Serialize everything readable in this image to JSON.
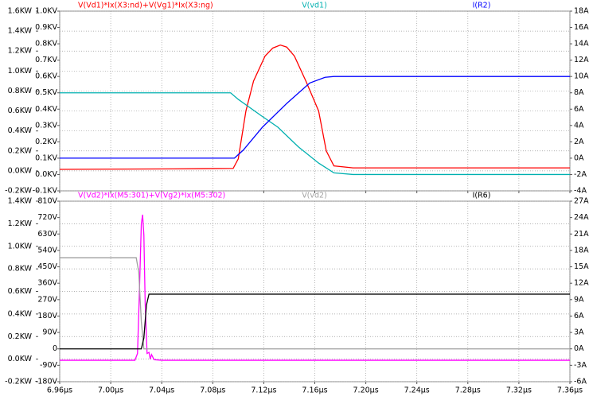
{
  "chart_data": [
    {
      "type": "line",
      "xlim": [
        6.96,
        7.36
      ],
      "ylim": [
        -0.2,
        1.6
      ],
      "yticks": [
        {
          "value": -0.2,
          "label": "-0.2KW"
        },
        {
          "value": 0,
          "label": "0.0KW"
        },
        {
          "value": 0.2,
          "label": "0.2KW"
        },
        {
          "value": 0.4,
          "label": "0.4KW"
        },
        {
          "value": 0.6,
          "label": "0.6KW"
        },
        {
          "value": 0.8,
          "label": "0.8KW"
        },
        {
          "value": 1.0,
          "label": "1.0KW"
        },
        {
          "value": 1.2,
          "label": "1.2KW"
        },
        {
          "value": 1.4,
          "label": "1.4KW"
        },
        {
          "value": 1.6,
          "label": "1.6KW"
        }
      ],
      "y2lim": [
        -0.1,
        1.0
      ],
      "y2ticks": [
        {
          "value": -0.1,
          "label": "-0.1KV"
        },
        {
          "value": 0,
          "label": "0.0KV"
        },
        {
          "value": 0.1,
          "label": "0.1KV"
        },
        {
          "value": 0.2,
          "label": "0.2KV"
        },
        {
          "value": 0.3,
          "label": "0.3KV"
        },
        {
          "value": 0.4,
          "label": "0.4KV"
        },
        {
          "value": 0.5,
          "label": "0.5KV"
        },
        {
          "value": 0.6,
          "label": "0.6KV"
        },
        {
          "value": 0.7,
          "label": "0.7KV"
        },
        {
          "value": 0.8,
          "label": "0.8KV"
        },
        {
          "value": 0.9,
          "label": "0.9KV"
        },
        {
          "value": 1.0,
          "label": "1.0KV"
        }
      ],
      "y3lim": [
        -4,
        18
      ],
      "y3ticks": [
        {
          "value": -4,
          "label": "-4A"
        },
        {
          "value": -2,
          "label": "-2A"
        },
        {
          "value": 0,
          "label": "0A"
        },
        {
          "value": 2,
          "label": "2A"
        },
        {
          "value": 4,
          "label": "4A"
        },
        {
          "value": 6,
          "label": "6A"
        },
        {
          "value": 8,
          "label": "8A"
        },
        {
          "value": 10,
          "label": "10A"
        },
        {
          "value": 12,
          "label": "12A"
        },
        {
          "value": 14,
          "label": "14A"
        },
        {
          "value": 16,
          "label": "16A"
        },
        {
          "value": 18,
          "label": "18A"
        }
      ],
      "grid": true,
      "series": [
        {
          "name": "V(Vd1)*Ix(X3:nd)+V(Vg1)*Ix(X3:ng)",
          "color": "#ff0000",
          "axis": "y",
          "x": [
            6.96,
            7.05,
            7.096,
            7.1,
            7.106,
            7.112,
            7.121,
            7.127,
            7.133,
            7.138,
            7.144,
            7.153,
            7.163,
            7.169,
            7.175,
            7.19,
            7.36
          ],
          "values": [
            0.015,
            0.02,
            0.025,
            0.12,
            0.6,
            0.9,
            1.15,
            1.23,
            1.26,
            1.24,
            1.15,
            0.9,
            0.6,
            0.2,
            0.05,
            0.03,
            0.03
          ]
        },
        {
          "name": "V(vd1)",
          "color": "#00b0b0",
          "axis": "y2",
          "x": [
            6.96,
            7.094,
            7.1,
            7.118,
            7.131,
            7.147,
            7.163,
            7.175,
            7.19,
            7.36
          ],
          "values": [
            0.5,
            0.5,
            0.46,
            0.36,
            0.29,
            0.17,
            0.07,
            0.01,
            0,
            0
          ]
        },
        {
          "name": "I(R2)",
          "color": "#0000ff",
          "axis": "y3",
          "x": [
            6.96,
            7.097,
            7.104,
            7.119,
            7.138,
            7.156,
            7.168,
            7.175,
            7.36
          ],
          "values": [
            0,
            0,
            1,
            3.8,
            6.7,
            9.2,
            9.9,
            10,
            10
          ]
        }
      ]
    },
    {
      "type": "line",
      "xlim": [
        6.96,
        7.36
      ],
      "xticks": [
        {
          "value": 6.96,
          "label": "6.96µs"
        },
        {
          "value": 7.0,
          "label": "7.00µs"
        },
        {
          "value": 7.04,
          "label": "7.04µs"
        },
        {
          "value": 7.08,
          "label": "7.08µs"
        },
        {
          "value": 7.12,
          "label": "7.12µs"
        },
        {
          "value": 7.16,
          "label": "7.16µs"
        },
        {
          "value": 7.2,
          "label": "7.20µs"
        },
        {
          "value": 7.24,
          "label": "7.24µs"
        },
        {
          "value": 7.28,
          "label": "7.28µs"
        },
        {
          "value": 7.32,
          "label": "7.32µs"
        },
        {
          "value": 7.36,
          "label": "7.36µs"
        }
      ],
      "ylim": [
        -0.2,
        1.4
      ],
      "yticks": [
        {
          "value": -0.2,
          "label": "-0.2KW"
        },
        {
          "value": 0,
          "label": "0.0KW"
        },
        {
          "value": 0.2,
          "label": "0.2KW"
        },
        {
          "value": 0.4,
          "label": "0.4KW"
        },
        {
          "value": 0.6,
          "label": "0.6KW"
        },
        {
          "value": 0.8,
          "label": "0.8KW"
        },
        {
          "value": 1.0,
          "label": "1.0KW"
        },
        {
          "value": 1.2,
          "label": "1.2KW"
        },
        {
          "value": 1.4,
          "label": "1.4KW"
        }
      ],
      "y2lim": [
        -180,
        810
      ],
      "y2ticks": [
        {
          "value": -180,
          "label": "-180V"
        },
        {
          "value": -90,
          "label": "-90V"
        },
        0,
        {
          "value": 90,
          "label": "90V"
        },
        {
          "value": 180,
          "label": "180V"
        },
        {
          "value": 270,
          "label": "270V"
        },
        {
          "value": 360,
          "label": "360V"
        },
        {
          "value": 450,
          "label": "450V"
        },
        {
          "value": 540,
          "label": "540V"
        },
        {
          "value": 630,
          "label": "630V"
        },
        {
          "value": 720,
          "label": "720V"
        },
        {
          "value": 810,
          "label": "810V"
        }
      ],
      "y3lim": [
        -6,
        27
      ],
      "y3ticks": [
        {
          "value": -6,
          "label": "-6A"
        },
        {
          "value": -3,
          "label": "-3A"
        },
        {
          "value": 0,
          "label": "0A"
        },
        {
          "value": 3,
          "label": "3A"
        },
        {
          "value": 6,
          "label": "6A"
        },
        {
          "value": 9,
          "label": "9A"
        },
        {
          "value": 12,
          "label": "12A"
        },
        {
          "value": 15,
          "label": "15A"
        },
        {
          "value": 18,
          "label": "18A"
        },
        {
          "value": 21,
          "label": "21A"
        },
        {
          "value": 24,
          "label": "24A"
        },
        {
          "value": 27,
          "label": "27A"
        }
      ],
      "grid": true,
      "series": [
        {
          "name": "V(Vd2)*Ix(M5:301)+V(Vg2)*Ix(M5:302)",
          "color": "#ff00ff",
          "axis": "y",
          "x": [
            6.96,
            7.019,
            7.021,
            7.0225,
            7.024,
            7.025,
            7.026,
            7.027,
            7.0285,
            7.03,
            7.031,
            7.032,
            7.034,
            7.04,
            7.36
          ],
          "values": [
            -0.01,
            -0.01,
            0.05,
            0.6,
            1.2,
            1.28,
            1.1,
            0.5,
            0.05,
            0.06,
            0,
            0.04,
            -0.005,
            -0.01,
            -0.01
          ]
        },
        {
          "name": "V(vd2)",
          "color": "#a0a0a0",
          "axis": "y2",
          "x": [
            6.96,
            7.02,
            7.022,
            7.024,
            7.026,
            7.36
          ],
          "values": [
            500,
            500,
            420,
            150,
            0,
            0
          ]
        },
        {
          "name": "I(R6)",
          "color": "#000000",
          "axis": "y3",
          "x": [
            6.96,
            7.024,
            7.026,
            7.028,
            7.03,
            7.36
          ],
          "values": [
            0,
            0,
            2,
            8,
            10,
            10
          ]
        }
      ]
    }
  ]
}
